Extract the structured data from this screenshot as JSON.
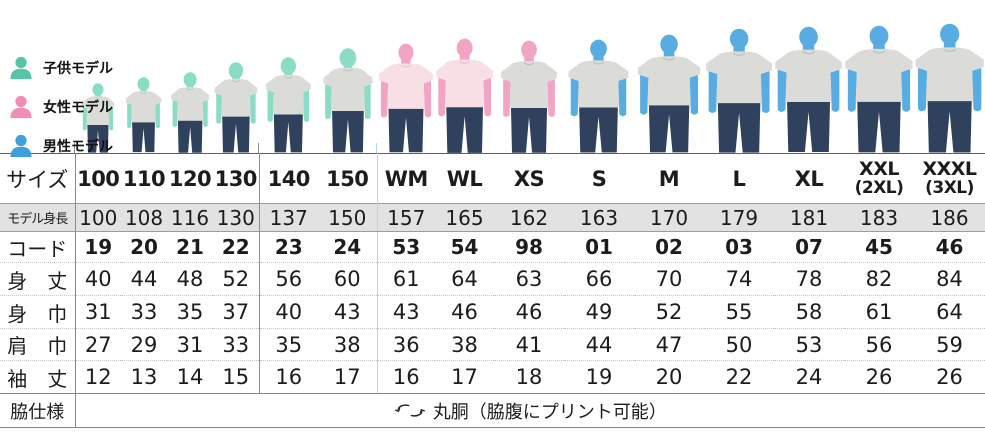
{
  "legend": {
    "items": [
      {
        "label": "子供モデル",
        "key": "child"
      },
      {
        "label": "女性モデル",
        "key": "women"
      },
      {
        "label": "男性モデル",
        "key": "men"
      }
    ]
  },
  "colors": {
    "child_text": "#10ab93",
    "women_text": "#ea5697",
    "men_text": "#1e7ec1",
    "legend_child": "#55c4a9",
    "legend_women": "#f18cb4",
    "legend_men": "#3e9fda",
    "skin_child": "#8bdcc4",
    "skin_women": "#f2a4c5",
    "skin_men": "#58ace1",
    "shirt_gray": "#dbdbd8",
    "shirt_pink": "#f8dfe6",
    "jeans": "#30415e",
    "divider_dark": "#8f8f8f",
    "divider_blue": "#aedae6",
    "band_bg": "#e2e2e2"
  },
  "chart_data": {
    "type": "table",
    "row_headers": {
      "size": "サイズ",
      "model_height": "モデル身長",
      "code": "コード",
      "body_length": "身　丈",
      "body_width": "身　巾",
      "shoulder_width": "肩　巾",
      "sleeve_length": "袖　丈",
      "side_spec": "脇仕様"
    },
    "side_spec_value": "丸胴（脇腹にプリント可能）",
    "columns": [
      {
        "size": "100",
        "group": "child",
        "model_height": "100",
        "code": "19",
        "body_length": "40",
        "body_width": "31",
        "shoulder_width": "27",
        "sleeve_length": "12",
        "model": {
          "height_cm": 100,
          "skin": "child",
          "shirt": "gray"
        }
      },
      {
        "size": "110",
        "group": "child",
        "model_height": "108",
        "code": "20",
        "body_length": "44",
        "body_width": "33",
        "shoulder_width": "29",
        "sleeve_length": "13",
        "model": {
          "height_cm": 108,
          "skin": "child",
          "shirt": "gray"
        }
      },
      {
        "size": "120",
        "group": "child",
        "model_height": "116",
        "code": "21",
        "body_length": "48",
        "body_width": "35",
        "shoulder_width": "31",
        "sleeve_length": "14",
        "model": {
          "height_cm": 116,
          "skin": "child",
          "shirt": "gray"
        }
      },
      {
        "size": "130",
        "group": "child",
        "divider": "dark",
        "model_height": "130",
        "code": "22",
        "body_length": "52",
        "body_width": "37",
        "shoulder_width": "33",
        "sleeve_length": "15",
        "model": {
          "height_cm": 130,
          "skin": "child",
          "shirt": "gray"
        }
      },
      {
        "size": "140",
        "group": "child",
        "model_height": "137",
        "code": "23",
        "body_length": "56",
        "body_width": "40",
        "shoulder_width": "35",
        "sleeve_length": "16",
        "model": {
          "height_cm": 137,
          "skin": "child",
          "shirt": "gray"
        }
      },
      {
        "size": "150",
        "group": "child",
        "divider": "blue",
        "model_height": "150",
        "code": "24",
        "body_length": "60",
        "body_width": "43",
        "shoulder_width": "38",
        "sleeve_length": "17",
        "model": {
          "height_cm": 150,
          "skin": "child",
          "shirt": "gray"
        }
      },
      {
        "size": "WM",
        "group": "women",
        "model_height": "157",
        "code": "53",
        "body_length": "61",
        "body_width": "43",
        "shoulder_width": "36",
        "sleeve_length": "16",
        "model": {
          "height_cm": 157,
          "skin": "women",
          "shirt": "pink"
        }
      },
      {
        "size": "WL",
        "group": "women",
        "model_height": "165",
        "code": "54",
        "body_length": "64",
        "body_width": "46",
        "shoulder_width": "38",
        "sleeve_length": "17",
        "model": {
          "height_cm": 165,
          "skin": "women",
          "shirt": "pink"
        }
      },
      {
        "size": "XS",
        "group": "men",
        "model_height": "162",
        "code": "98",
        "body_length": "63",
        "body_width": "46",
        "shoulder_width": "41",
        "sleeve_length": "18",
        "model": {
          "height_cm": 162,
          "skin": "women",
          "shirt": "gray"
        }
      },
      {
        "size": "S",
        "group": "men",
        "model_height": "163",
        "code": "01",
        "body_length": "66",
        "body_width": "49",
        "shoulder_width": "44",
        "sleeve_length": "19",
        "model": {
          "height_cm": 163,
          "skin": "men",
          "shirt": "gray"
        }
      },
      {
        "size": "M",
        "group": "men",
        "model_height": "170",
        "code": "02",
        "body_length": "70",
        "body_width": "52",
        "shoulder_width": "47",
        "sleeve_length": "20",
        "model": {
          "height_cm": 170,
          "skin": "men",
          "shirt": "gray"
        }
      },
      {
        "size": "L",
        "group": "men",
        "model_height": "179",
        "code": "03",
        "body_length": "74",
        "body_width": "55",
        "shoulder_width": "50",
        "sleeve_length": "22",
        "model": {
          "height_cm": 179,
          "skin": "men",
          "shirt": "gray"
        }
      },
      {
        "size": "XL",
        "group": "men",
        "model_height": "181",
        "code": "07",
        "body_length": "78",
        "body_width": "58",
        "shoulder_width": "53",
        "sleeve_length": "24",
        "model": {
          "height_cm": 181,
          "skin": "men",
          "shirt": "gray"
        }
      },
      {
        "size": "XXL",
        "size_sub": "(2XL)",
        "group": "men",
        "model_height": "183",
        "code": "45",
        "body_length": "82",
        "body_width": "61",
        "shoulder_width": "56",
        "sleeve_length": "26",
        "model": {
          "height_cm": 183,
          "skin": "men",
          "shirt": "gray"
        }
      },
      {
        "size": "XXXL",
        "size_sub": "(3XL)",
        "group": "men",
        "model_height": "186",
        "code": "46",
        "body_length": "84",
        "body_width": "64",
        "shoulder_width": "59",
        "sleeve_length": "26",
        "model": {
          "height_cm": 186,
          "skin": "men",
          "shirt": "gray"
        }
      }
    ]
  }
}
